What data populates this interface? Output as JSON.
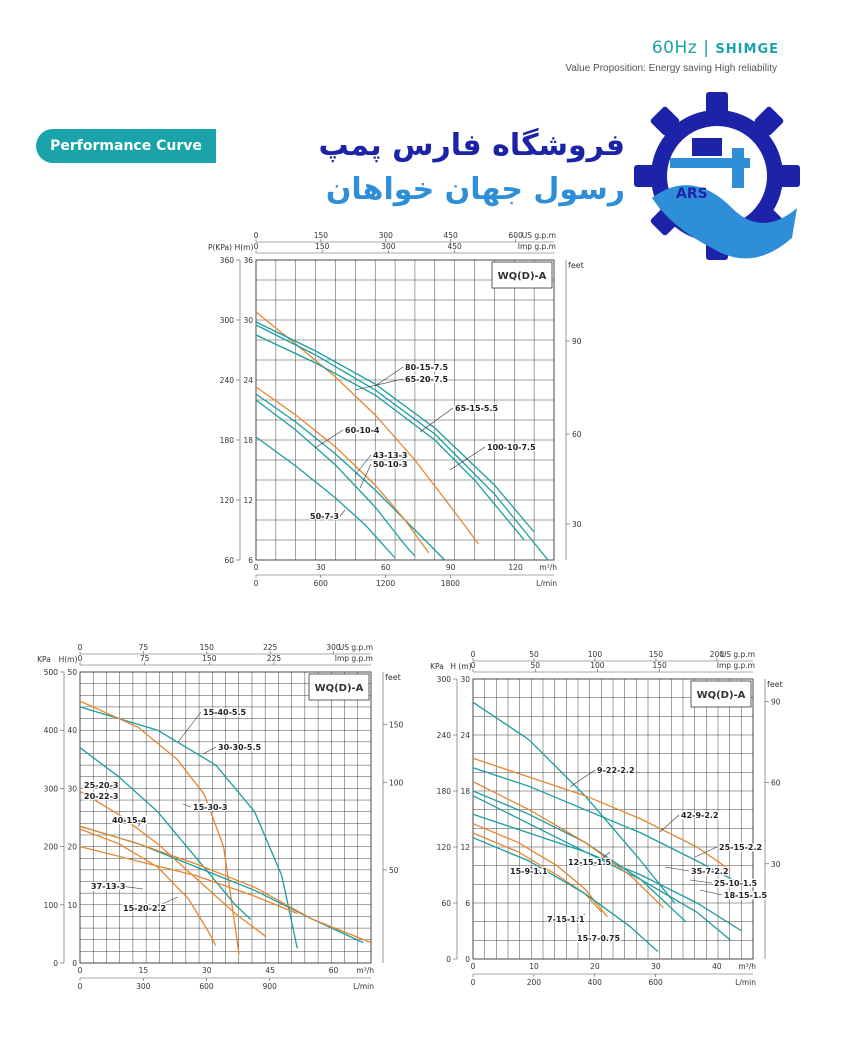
{
  "header": {
    "freq": "60Hz",
    "separator": "|",
    "brand": "SHIMGE",
    "subtitle": "Value Proposition: Energy saving  High reliability"
  },
  "badge": {
    "label": "Performance Curve"
  },
  "store": {
    "line1": "فروشگاه فارس پمپ",
    "line2": "رسول جهان خواهان",
    "logo_text": "ARS"
  },
  "colors": {
    "teal": "#1a9ea0",
    "orange": "#e6862f",
    "navy": "#1d23a8"
  },
  "chart_data": [
    {
      "type": "line",
      "model": "WQ(D)-A",
      "axes": {
        "p_label": "P(KPa)",
        "h_label": "H(m)",
        "feet_label": "feet",
        "us_label": "US g.p.m",
        "imp_label": "Imp g.p.m",
        "m3h_label": "m³/h",
        "lmin_label": "L/min"
      },
      "xlim": [
        0,
        150
      ],
      "ylim": [
        6,
        36
      ],
      "h_ticks": [
        "36",
        "30",
        "24",
        "18",
        "12",
        "6"
      ],
      "p_ticks": [
        "360",
        "300",
        "240",
        "180",
        "120",
        "60"
      ],
      "feet_ticks": [
        "90",
        "60",
        "30"
      ],
      "us_ticks": [
        "0",
        "150",
        "300",
        "450",
        "600"
      ],
      "imp_ticks": [
        "0",
        "150",
        "300",
        "450"
      ],
      "m3h_ticks": [
        "0",
        "30",
        "60",
        "90",
        "120"
      ],
      "lmin_ticks": [
        "0",
        "600",
        "1200",
        "1800"
      ],
      "series": [
        {
          "name": "80-15-7.5",
          "color": "orange",
          "points": [
            [
              0,
              30.8
            ],
            [
              20,
              27.6
            ],
            [
              40,
              24.3
            ],
            [
              60,
              20.5
            ],
            [
              80,
              16.0
            ],
            [
              100,
              10.8
            ],
            [
              112,
              7.6
            ]
          ]
        },
        {
          "name": "65-20-7.5",
          "color": "teal",
          "points": [
            [
              0,
              28.5
            ],
            [
              30,
              25.7
            ],
            [
              60,
              22.5
            ],
            [
              90,
              18.0
            ],
            [
              110,
              14.0
            ],
            [
              135,
              8.0
            ]
          ]
        },
        {
          "name": "65-15-5.5",
          "color": "teal",
          "points": [
            [
              0,
              29.8
            ],
            [
              30,
              26.9
            ],
            [
              60,
              23.6
            ],
            [
              90,
              19.2
            ],
            [
              120,
              13.5
            ],
            [
              140,
              8.8
            ]
          ]
        },
        {
          "name": "100-10-7.5",
          "color": "teal",
          "points": [
            [
              0,
              29.5
            ],
            [
              30,
              26.5
            ],
            [
              60,
              23.0
            ],
            [
              90,
              18.6
            ],
            [
              120,
              12.6
            ],
            [
              147,
              6.0
            ]
          ]
        },
        {
          "name": "60-10-4",
          "color": "teal",
          "points": [
            [
              0,
              22.6
            ],
            [
              20,
              19.8
            ],
            [
              40,
              16.6
            ],
            [
              60,
              13.0
            ],
            [
              80,
              9.0
            ],
            [
              95,
              6.0
            ]
          ]
        },
        {
          "name": "43-13-3",
          "color": "orange",
          "points": [
            [
              0,
              23.3
            ],
            [
              20,
              20.5
            ],
            [
              40,
              17.3
            ],
            [
              60,
              13.5
            ],
            [
              75,
              10.0
            ],
            [
              87,
              6.7
            ]
          ]
        },
        {
          "name": "50-10-3",
          "color": "teal",
          "points": [
            [
              0,
              22.0
            ],
            [
              20,
              19.0
            ],
            [
              40,
              15.5
            ],
            [
              60,
              11.3
            ],
            [
              75,
              7.5
            ],
            [
              80,
              6.4
            ]
          ]
        },
        {
          "name": "50-7-3",
          "color": "teal",
          "points": [
            [
              0,
              18.3
            ],
            [
              20,
              15.4
            ],
            [
              40,
              12.2
            ],
            [
              55,
              9.5
            ],
            [
              70,
              6.2
            ]
          ]
        }
      ],
      "labels": [
        "80-15-7.5",
        "65-20-7.5",
        "65-15-5.5",
        "60-10-4",
        "100-10-7.5",
        "43-13-3",
        "50-10-3",
        "50-7-3"
      ]
    },
    {
      "type": "line",
      "model": "WQ(D)-A",
      "axes": {
        "p_label": "KPa",
        "h_label": "H(m)",
        "feet_label": "feet",
        "us_label": "US g.p.m",
        "imp_label": "Imp g.p.m",
        "m3h_label": "m³/h",
        "lmin_label": "L/min"
      },
      "xlim": [
        0,
        75
      ],
      "ylim": [
        0,
        50
      ],
      "h_ticks": [
        "50",
        "40",
        "30",
        "20",
        "10",
        "0"
      ],
      "p_ticks": [
        "500",
        "400",
        "300",
        "200",
        "100",
        "0"
      ],
      "feet_ticks": [
        "150",
        "100",
        "50"
      ],
      "us_ticks": [
        "0",
        "75",
        "150",
        "225",
        "300"
      ],
      "imp_ticks": [
        "0",
        "75",
        "150",
        "225"
      ],
      "m3h_ticks": [
        "0",
        "15",
        "30",
        "45",
        "60"
      ],
      "lmin_ticks": [
        "0",
        "300",
        "600",
        "900"
      ],
      "series": [
        {
          "name": "15-40-5.5",
          "color": "teal",
          "points": [
            [
              0,
              44.0
            ],
            [
              20,
              40.0
            ],
            [
              35,
              34.0
            ],
            [
              45,
              26.0
            ],
            [
              52,
              15.0
            ],
            [
              56,
              2.5
            ]
          ]
        },
        {
          "name": "30-30-5.5",
          "color": "orange",
          "points": [
            [
              0,
              45.0
            ],
            [
              15,
              40.5
            ],
            [
              25,
              35.0
            ],
            [
              32,
              29.0
            ],
            [
              37,
              20.0
            ],
            [
              41,
              1.5
            ]
          ]
        },
        {
          "name": "15-30-3",
          "color": "teal",
          "points": [
            [
              0,
              37.0
            ],
            [
              10,
              32.0
            ],
            [
              20,
              26.0
            ],
            [
              30,
              18.0
            ],
            [
              40,
              10.0
            ],
            [
              44,
              7.5
            ]
          ]
        },
        {
          "name": "25-20-3",
          "color": "orange",
          "points": [
            [
              0,
              29.5
            ],
            [
              10,
              25.5
            ],
            [
              20,
              20.5
            ],
            [
              30,
              14.5
            ],
            [
              40,
              8.5
            ],
            [
              48,
              4.5
            ]
          ]
        },
        {
          "name": "20-22-3",
          "color": "teal",
          "points": [
            [
              0,
              23.5
            ],
            [
              15,
              20.5
            ],
            [
              30,
              16.5
            ],
            [
              45,
              12.5
            ],
            [
              60,
              7.5
            ],
            [
              73,
              3.5
            ]
          ]
        },
        {
          "name": "40-15-4",
          "color": "orange",
          "points": [
            [
              0,
              23.5
            ],
            [
              15,
              20.5
            ],
            [
              30,
              17.0
            ],
            [
              45,
              13.0
            ],
            [
              60,
              7.5
            ],
            [
              75,
              3.5
            ]
          ]
        },
        {
          "name": "37-13-3",
          "color": "orange",
          "points": [
            [
              0,
              20.0
            ],
            [
              15,
              17.5
            ],
            [
              30,
              15.0
            ],
            [
              45,
              11.5
            ],
            [
              56,
              8.5
            ]
          ]
        },
        {
          "name": "15-20-2.2",
          "color": "orange",
          "points": [
            [
              0,
              23.0
            ],
            [
              10,
              20.5
            ],
            [
              20,
              16.5
            ],
            [
              28,
              11.0
            ],
            [
              33,
              5.5
            ],
            [
              35,
              3.0
            ]
          ]
        }
      ],
      "labels": [
        "15-40-5.5",
        "30-30-5.5",
        "25-20-3",
        "20-22-3",
        "15-30-3",
        "40-15-4",
        "37-13-3",
        "15-20-2.2"
      ]
    },
    {
      "type": "line",
      "model": "WQ(D)-A",
      "axes": {
        "p_label": "KPa",
        "h_label": "H (m)",
        "feet_label": "feet",
        "us_label": "US g.p.m",
        "imp_label": "Imp g.p.m",
        "m3h_label": "m³/h",
        "lmin_label": "L/min"
      },
      "xlim": [
        0,
        50
      ],
      "ylim": [
        0,
        30
      ],
      "h_ticks": [
        "30",
        "24",
        "18",
        "12",
        "6",
        "0"
      ],
      "p_ticks": [
        "300",
        "240",
        "180",
        "120",
        "60",
        "0"
      ],
      "feet_ticks": [
        "90",
        "60",
        "30"
      ],
      "us_ticks": [
        "0",
        "50",
        "100",
        "150",
        "200"
      ],
      "imp_ticks": [
        "0",
        "50",
        "100",
        "150"
      ],
      "m3h_ticks": [
        "0",
        "10",
        "20",
        "30",
        "40"
      ],
      "lmin_ticks": [
        "0",
        "200",
        "400",
        "600"
      ],
      "series": [
        {
          "name": "9-22-2.2",
          "color": "teal",
          "points": [
            [
              0,
              27.5
            ],
            [
              10,
              23.5
            ],
            [
              20,
              17.5
            ],
            [
              30,
              10.5
            ],
            [
              36,
              6.0
            ]
          ]
        },
        {
          "name": "42-9-2.2",
          "color": "orange",
          "points": [
            [
              0,
              21.5
            ],
            [
              10,
              19.5
            ],
            [
              20,
              17.5
            ],
            [
              30,
              15.0
            ],
            [
              40,
              12.0
            ],
            [
              46,
              9.5
            ]
          ]
        },
        {
          "name": "25-15-2.2",
          "color": "teal",
          "points": [
            [
              0,
              20.5
            ],
            [
              10,
              18.5
            ],
            [
              20,
              16.0
            ],
            [
              30,
              13.5
            ],
            [
              40,
              10.5
            ],
            [
              48,
              8.0
            ]
          ]
        },
        {
          "name": "12-15-1.5",
          "color": "teal",
          "points": [
            [
              0,
              18.0
            ],
            [
              10,
              15.5
            ],
            [
              20,
              12.5
            ],
            [
              30,
              8.5
            ],
            [
              38,
              4.0
            ]
          ]
        },
        {
          "name": "35-7-2.2",
          "color": "teal",
          "points": [
            [
              0,
              15.5
            ],
            [
              10,
              13.5
            ],
            [
              20,
              11.5
            ],
            [
              30,
              9.0
            ],
            [
              40,
              6.0
            ],
            [
              48,
              3.0
            ]
          ]
        },
        {
          "name": "25-10-1.5",
          "color": "teal",
          "points": [
            [
              0,
              17.5
            ],
            [
              10,
              14.5
            ],
            [
              20,
              11.5
            ],
            [
              30,
              8.5
            ],
            [
              40,
              5.0
            ],
            [
              46,
              2.0
            ]
          ]
        },
        {
          "name": "18-15-1.5",
          "color": "orange",
          "points": [
            [
              0,
              19.0
            ],
            [
              10,
              16.0
            ],
            [
              20,
              12.5
            ],
            [
              28,
              9.0
            ],
            [
              34,
              5.5
            ]
          ]
        },
        {
          "name": "15-9-1.1",
          "color": "orange",
          "points": [
            [
              0,
              14.5
            ],
            [
              8,
              12.5
            ],
            [
              15,
              10.0
            ],
            [
              20,
              7.5
            ],
            [
              24,
              4.5
            ]
          ]
        },
        {
          "name": "7-15-1.1",
          "color": "orange",
          "points": [
            [
              0,
              13.5
            ],
            [
              8,
              11.5
            ],
            [
              15,
              9.0
            ],
            [
              20,
              7.0
            ],
            [
              23,
              5.0
            ]
          ]
        },
        {
          "name": "15-7-0.75",
          "color": "teal",
          "points": [
            [
              0,
              13.0
            ],
            [
              10,
              10.5
            ],
            [
              20,
              7.0
            ],
            [
              28,
              3.5
            ],
            [
              33,
              0.8
            ]
          ]
        }
      ],
      "labels": [
        "9-22-2.2",
        "42-9-2.2",
        "25-15-2.2",
        "12-15-1.5",
        "15-9-1.1",
        "35-7-2.2",
        "25-10-1.5",
        "18-15-1.5",
        "7-15-1.1",
        "15-7-0.75"
      ]
    }
  ]
}
